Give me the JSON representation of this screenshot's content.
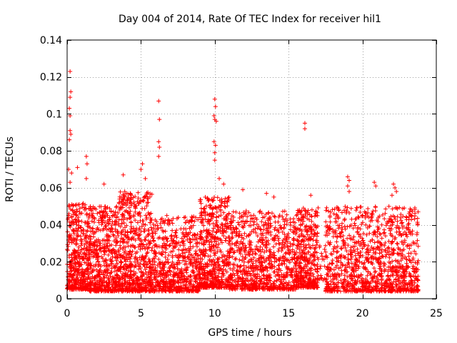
{
  "chart_data": {
    "type": "scatter",
    "title": "Day 004 of 2014, Rate Of TEC Index for receiver hil1",
    "xlabel": "GPS time / hours",
    "ylabel": "ROTI / TECUs",
    "xlim": [
      0,
      25
    ],
    "ylim": [
      0,
      0.14
    ],
    "x_ticks": [
      0,
      5,
      10,
      15,
      20,
      25
    ],
    "x_tick_labels": [
      "0",
      "5",
      "10",
      "15",
      "20",
      "25"
    ],
    "y_ticks": [
      0,
      0.02,
      0.04,
      0.06,
      0.08,
      0.1,
      0.12,
      0.14
    ],
    "y_tick_labels": [
      "0",
      "0.02",
      "0.04",
      "0.06",
      "0.08",
      "0.1",
      "0.12",
      "0.14"
    ],
    "grid": true,
    "marker": "+",
    "series": [
      {
        "name": "ROTI",
        "color": "#ff0000",
        "outliers": [
          {
            "x": 0.2,
            "y": 0.123
          },
          {
            "x": 0.25,
            "y": 0.112
          },
          {
            "x": 0.2,
            "y": 0.109
          },
          {
            "x": 0.15,
            "y": 0.103
          },
          {
            "x": 0.2,
            "y": 0.099
          },
          {
            "x": 0.2,
            "y": 0.091
          },
          {
            "x": 0.25,
            "y": 0.089
          },
          {
            "x": 0.15,
            "y": 0.086
          },
          {
            "x": 0.1,
            "y": 0.07
          },
          {
            "x": 0.3,
            "y": 0.068
          },
          {
            "x": 0.2,
            "y": 0.063
          },
          {
            "x": 1.3,
            "y": 0.077
          },
          {
            "x": 1.35,
            "y": 0.073
          },
          {
            "x": 1.3,
            "y": 0.065
          },
          {
            "x": 0.7,
            "y": 0.071
          },
          {
            "x": 2.5,
            "y": 0.062
          },
          {
            "x": 3.8,
            "y": 0.067
          },
          {
            "x": 3.9,
            "y": 0.058
          },
          {
            "x": 5.1,
            "y": 0.073
          },
          {
            "x": 5.3,
            "y": 0.065
          },
          {
            "x": 5.0,
            "y": 0.07
          },
          {
            "x": 6.2,
            "y": 0.107
          },
          {
            "x": 6.25,
            "y": 0.097
          },
          {
            "x": 6.2,
            "y": 0.085
          },
          {
            "x": 6.25,
            "y": 0.082
          },
          {
            "x": 6.2,
            "y": 0.077
          },
          {
            "x": 10.0,
            "y": 0.108
          },
          {
            "x": 10.05,
            "y": 0.104
          },
          {
            "x": 9.95,
            "y": 0.099
          },
          {
            "x": 10.0,
            "y": 0.097
          },
          {
            "x": 10.1,
            "y": 0.096
          },
          {
            "x": 9.95,
            "y": 0.085
          },
          {
            "x": 10.05,
            "y": 0.083
          },
          {
            "x": 10.0,
            "y": 0.079
          },
          {
            "x": 10.0,
            "y": 0.075
          },
          {
            "x": 10.3,
            "y": 0.065
          },
          {
            "x": 10.6,
            "y": 0.062
          },
          {
            "x": 11.9,
            "y": 0.059
          },
          {
            "x": 13.5,
            "y": 0.057
          },
          {
            "x": 14.0,
            "y": 0.055
          },
          {
            "x": 16.1,
            "y": 0.095
          },
          {
            "x": 16.1,
            "y": 0.092
          },
          {
            "x": 16.5,
            "y": 0.056
          },
          {
            "x": 19.0,
            "y": 0.066
          },
          {
            "x": 19.1,
            "y": 0.064
          },
          {
            "x": 19.0,
            "y": 0.061
          },
          {
            "x": 19.1,
            "y": 0.058
          },
          {
            "x": 20.8,
            "y": 0.063
          },
          {
            "x": 20.9,
            "y": 0.061
          },
          {
            "x": 22.1,
            "y": 0.062
          },
          {
            "x": 22.2,
            "y": 0.06
          },
          {
            "x": 22.3,
            "y": 0.058
          },
          {
            "x": 22.0,
            "y": 0.056
          },
          {
            "x": 23.3,
            "y": 0.048
          }
        ],
        "dense_segments": [
          {
            "x_start": 0.0,
            "x_end": 1.5,
            "y_min": 0.005,
            "y_max": 0.052,
            "count": 420
          },
          {
            "x_start": 1.5,
            "x_end": 3.5,
            "y_min": 0.004,
            "y_max": 0.05,
            "count": 520
          },
          {
            "x_start": 3.5,
            "x_end": 5.8,
            "y_min": 0.004,
            "y_max": 0.058,
            "count": 620
          },
          {
            "x_start": 5.8,
            "x_end": 9.0,
            "y_min": 0.004,
            "y_max": 0.045,
            "count": 620
          },
          {
            "x_start": 9.0,
            "x_end": 11.0,
            "y_min": 0.006,
            "y_max": 0.055,
            "count": 500
          },
          {
            "x_start": 11.0,
            "x_end": 15.5,
            "y_min": 0.005,
            "y_max": 0.048,
            "count": 820
          },
          {
            "x_start": 15.5,
            "x_end": 17.0,
            "y_min": 0.006,
            "y_max": 0.05,
            "count": 380
          },
          {
            "x_start": 17.0,
            "x_end": 17.5,
            "y_min": 0.01,
            "y_max": 0.03,
            "count": 20
          },
          {
            "x_start": 17.5,
            "x_end": 23.8,
            "y_min": 0.004,
            "y_max": 0.05,
            "count": 1100
          }
        ]
      }
    ]
  }
}
